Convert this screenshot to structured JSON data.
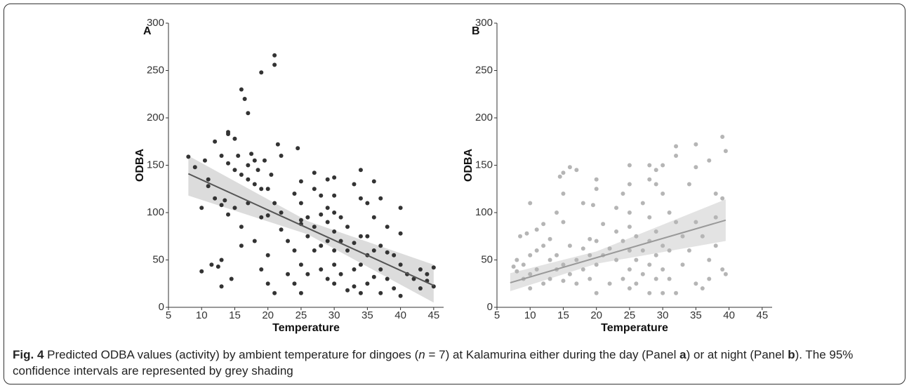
{
  "chart_data": [
    {
      "type": "scatter",
      "panel_label": "A",
      "x_label": "Temperature",
      "y_label": "ODBA",
      "xlim": [
        5,
        46.5
      ],
      "xticks": [
        5,
        10,
        15,
        20,
        25,
        30,
        35,
        40,
        45
      ],
      "ylim": [
        0,
        300
      ],
      "yticks": [
        0,
        50,
        100,
        150,
        200,
        250,
        300
      ],
      "series": [
        {
          "color": "#333333",
          "x": [
            8,
            9,
            10,
            10,
            10.5,
            11,
            11,
            11.5,
            12,
            12,
            12.5,
            13,
            13,
            13,
            13,
            13.5,
            14,
            14,
            14,
            14,
            14.5,
            15,
            15,
            15,
            15.5,
            16,
            16,
            16,
            16,
            16.5,
            17,
            17,
            17,
            17,
            17.5,
            18,
            18,
            18,
            18.5,
            19,
            19,
            19,
            19,
            19.5,
            20,
            20,
            20,
            20,
            20.5,
            21,
            21,
            21,
            21,
            21.5,
            22,
            22,
            22,
            23,
            23,
            24,
            24,
            24,
            24.5,
            25,
            25,
            25,
            25,
            25,
            25,
            26,
            26,
            26,
            27,
            27,
            27,
            27,
            28,
            28,
            28,
            28,
            29,
            29,
            29,
            29,
            29,
            30,
            30,
            30,
            30,
            30,
            30,
            30,
            31,
            31,
            31,
            32,
            32,
            32,
            33,
            33,
            33,
            33,
            34,
            34,
            34,
            34,
            34,
            35,
            35,
            35,
            35,
            36,
            36,
            36,
            36,
            37,
            37,
            37,
            37,
            38,
            38,
            38,
            39,
            39,
            40,
            40,
            40,
            40,
            41,
            42,
            43,
            43,
            44,
            44,
            45,
            45
          ],
          "values": [
            159,
            148,
            105,
            38,
            155,
            135,
            128,
            45,
            175,
            115,
            43,
            160,
            108,
            50,
            22,
            113,
            183,
            185,
            152,
            98,
            30,
            178,
            145,
            105,
            160,
            230,
            140,
            85,
            65,
            220,
            205,
            150,
            135,
            110,
            162,
            155,
            130,
            70,
            145,
            248,
            125,
            95,
            40,
            155,
            125,
            97,
            55,
            25,
            140,
            256,
            266,
            110,
            15,
            172,
            160,
            100,
            82,
            70,
            35,
            120,
            60,
            25,
            168,
            133,
            110,
            92,
            88,
            45,
            15,
            95,
            75,
            35,
            142,
            125,
            85,
            60,
            118,
            98,
            65,
            40,
            135,
            105,
            90,
            70,
            30,
            137,
            118,
            100,
            80,
            60,
            45,
            25,
            95,
            70,
            35,
            85,
            60,
            18,
            130,
            68,
            40,
            22,
            145,
            115,
            75,
            45,
            15,
            110,
            75,
            55,
            25,
            133,
            95,
            60,
            32,
            115,
            65,
            40,
            15,
            85,
            58,
            30,
            55,
            20,
            105,
            78,
            45,
            12,
            35,
            30,
            40,
            20,
            35,
            28,
            42,
            22
          ]
        }
      ],
      "fit": {
        "color": "#555555",
        "x": [
          8,
          45
        ],
        "values": [
          141,
          23
        ]
      },
      "band": {
        "color": "#dcdcdc",
        "x": [
          8,
          26,
          45
        ],
        "lower": [
          118,
          77,
          5
        ],
        "upper": [
          160,
          91,
          45
        ]
      }
    },
    {
      "type": "scatter",
      "panel_label": "B",
      "x_label": "Temperature",
      "y_label": "ODBA",
      "xlim": [
        5,
        46.5
      ],
      "xticks": [
        5,
        10,
        15,
        20,
        25,
        30,
        35,
        40,
        45
      ],
      "ylim": [
        0,
        300
      ],
      "yticks": [
        0,
        50,
        100,
        150,
        200,
        250,
        300
      ],
      "series": [
        {
          "color": "#b5b5b5",
          "x": [
            7.5,
            8,
            8,
            8.5,
            9,
            9,
            9.5,
            10,
            10,
            10,
            10,
            11,
            11,
            11,
            12,
            12,
            12,
            13,
            13,
            13,
            14,
            14,
            14,
            14.5,
            15,
            15,
            15,
            15,
            15,
            16,
            16,
            16,
            17,
            17,
            17,
            18,
            18,
            18,
            19,
            19,
            19,
            19.5,
            20,
            20,
            20,
            20,
            20,
            21,
            21,
            22,
            22,
            23,
            23,
            23,
            24,
            24,
            24,
            25,
            25,
            25,
            25,
            25,
            25,
            25,
            26,
            26,
            26,
            27,
            27,
            27,
            28,
            28,
            28,
            28,
            28,
            28,
            29,
            29,
            29,
            29,
            29,
            30,
            30,
            30,
            30,
            30,
            31,
            31,
            31,
            32,
            32,
            32,
            32,
            33,
            33,
            34,
            34,
            35,
            35,
            35,
            35,
            36,
            36,
            37,
            37,
            37,
            38,
            38,
            38,
            39,
            39,
            39,
            39.5,
            39.5
          ],
          "values": [
            43,
            38,
            50,
            75,
            30,
            45,
            78,
            110,
            55,
            35,
            20,
            82,
            60,
            40,
            88,
            65,
            25,
            72,
            50,
            30,
            100,
            55,
            40,
            138,
            142,
            120,
            90,
            45,
            28,
            148,
            65,
            35,
            145,
            50,
            25,
            110,
            62,
            40,
            72,
            55,
            30,
            108,
            135,
            125,
            70,
            45,
            15,
            88,
            55,
            62,
            25,
            105,
            80,
            50,
            120,
            70,
            30,
            150,
            130,
            100,
            85,
            60,
            40,
            20,
            75,
            50,
            25,
            110,
            60,
            35,
            150,
            135,
            95,
            70,
            45,
            15,
            145,
            130,
            80,
            55,
            30,
            150,
            120,
            65,
            40,
            15,
            100,
            60,
            30,
            170,
            160,
            90,
            15,
            75,
            45,
            130,
            60,
            172,
            148,
            90,
            25,
            75,
            20,
            155,
            50,
            30,
            120,
            95,
            65,
            180,
            115,
            40,
            165,
            35
          ]
        }
      ],
      "fit": {
        "color": "#999999",
        "x": [
          7,
          39.5
        ],
        "values": [
          26,
          92
        ]
      },
      "band": {
        "color": "#e3e3e3",
        "x": [
          7,
          20,
          39.5
        ],
        "lower": [
          17,
          46,
          70
        ],
        "upper": [
          36,
          59,
          114
        ]
      }
    }
  ],
  "caption": {
    "label": "Fig. 4",
    "segments": [
      " Predicted ODBA values (activity) by ambient temperature for dingoes (",
      "n",
      " = 7) at Kalamurina either during the day (Panel ",
      "a",
      ") or at night (Panel ",
      "b",
      "). The 95% confidence intervals are represented by grey shading"
    ]
  }
}
